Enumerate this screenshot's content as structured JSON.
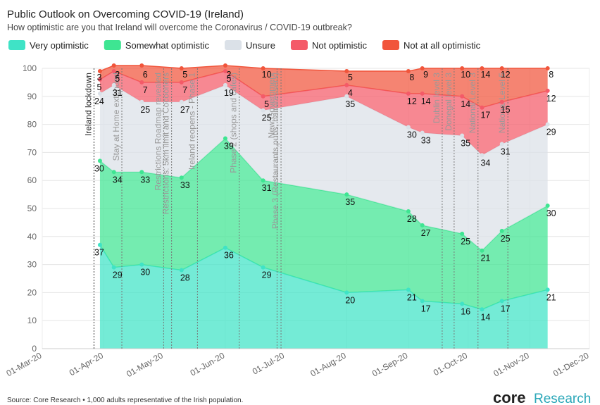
{
  "chart_data": {
    "type": "stacked-area",
    "title": "Public Outlook on Overcoming COVID-19 (Ireland)",
    "subtitle": "How optimistic are you that Ireland will overcome the Coronavirus / COVID-19 outbreak?",
    "x": [
      "2020-03-30",
      "2020-04-06",
      "2020-04-20",
      "2020-05-10",
      "2020-06-01",
      "2020-06-20",
      "2020-08-01",
      "2020-09-01",
      "2020-09-08",
      "2020-09-28",
      "2020-10-08",
      "2020-10-18",
      "2020-11-10"
    ],
    "series": [
      {
        "name": "Very optimistic",
        "color": "#3fe3c6",
        "values": [
          37,
          29,
          30,
          28,
          36,
          29,
          20,
          21,
          17,
          16,
          14,
          17,
          21
        ]
      },
      {
        "name": "Somewhat optimistic",
        "color": "#3ee592",
        "values": [
          30,
          34,
          33,
          33,
          39,
          31,
          35,
          28,
          27,
          25,
          21,
          25,
          30
        ]
      },
      {
        "name": "Unsure",
        "color": "#dbe1e8",
        "values": [
          24,
          31,
          25,
          27,
          19,
          25,
          35,
          30,
          33,
          35,
          34,
          31,
          29
        ]
      },
      {
        "name": "Not optimistic",
        "color": "#f45a68",
        "values": [
          5,
          5,
          7,
          7,
          5,
          5,
          4,
          12,
          14,
          14,
          17,
          15,
          12
        ]
      },
      {
        "name": "Not at all optimistic",
        "color": "#f1553b",
        "values": [
          3,
          2,
          6,
          5,
          2,
          10,
          5,
          8,
          9,
          10,
          14,
          12,
          8
        ]
      }
    ],
    "xlim": [
      "2020-03-01",
      "2020-12-01"
    ],
    "xticks": [
      {
        "value": "2020-03-01",
        "label": "01-Mar-20"
      },
      {
        "value": "2020-04-01",
        "label": "01-Apr-20"
      },
      {
        "value": "2020-05-01",
        "label": "01-May-20"
      },
      {
        "value": "2020-06-01",
        "label": "01-Jun-20"
      },
      {
        "value": "2020-07-01",
        "label": "01-Jul-20"
      },
      {
        "value": "2020-08-01",
        "label": "01-Aug-20"
      },
      {
        "value": "2020-09-01",
        "label": "01-Sep-20"
      },
      {
        "value": "2020-10-01",
        "label": "01-Oct-20"
      },
      {
        "value": "2020-11-01",
        "label": "01-Nov-20"
      },
      {
        "value": "2020-12-01",
        "label": "01-Dec-20"
      }
    ],
    "ylim": [
      0,
      100
    ],
    "yticks": [
      0,
      10,
      20,
      30,
      40,
      50,
      60,
      70,
      80,
      90,
      100
    ],
    "grid": true,
    "events": [
      {
        "x": "2020-03-27",
        "label": "Ireland lockdown"
      },
      {
        "x": "2020-04-10",
        "label": "Stay at Home extended"
      },
      {
        "x": "2020-05-01",
        "label": "Restrictions Roadmap revealed"
      },
      {
        "x": "2020-05-05",
        "label": "Restrictions: 5km limit and Cocooners"
      },
      {
        "x": "2020-05-18",
        "label": "Ireland reopens - Phase 1"
      },
      {
        "x": "2020-06-08",
        "label": "Phase 2 (shops and cafes)"
      },
      {
        "x": "2020-06-27",
        "label": "New Government"
      },
      {
        "x": "2020-06-29",
        "label": "Phase 3 (Restaurants,pubs, hairdressers)"
      },
      {
        "x": "2020-09-18",
        "label": "Dublin level 3"
      },
      {
        "x": "2020-09-24",
        "label": "Donegal level 3"
      },
      {
        "x": "2020-10-06",
        "label": "National Level 3"
      },
      {
        "x": "2020-10-21",
        "label": "National Level 5"
      }
    ]
  },
  "footer": {
    "source": "Source: Core Research • 1,000 adults representative of the Irish population.",
    "logo_main": "core",
    "logo_sub": "Research"
  }
}
